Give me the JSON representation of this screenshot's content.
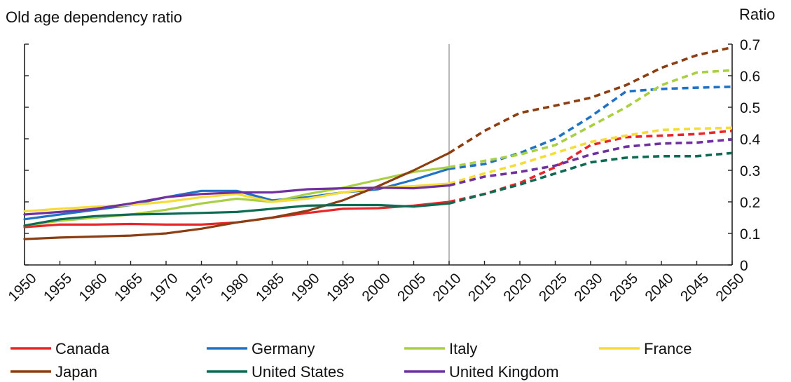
{
  "chart_data": {
    "type": "line",
    "title": "Old age dependency ratio",
    "ylabel": "Ratio",
    "ylim": [
      0,
      0.7
    ],
    "yticks": [
      "0",
      "0.1",
      "0.2",
      "0.3",
      "0.4",
      "0.5",
      "0.6",
      "0.7"
    ],
    "x": [
      1950,
      1955,
      1960,
      1965,
      1970,
      1975,
      1980,
      1985,
      1990,
      1995,
      2000,
      2005,
      2010,
      2015,
      2020,
      2025,
      2030,
      2035,
      2040,
      2045,
      2050
    ],
    "xticks": [
      "1950",
      "1955",
      "1960",
      "1965",
      "1970",
      "1975",
      "1980",
      "1985",
      "1990",
      "1995",
      "2000",
      "2005",
      "2010",
      "2015",
      "2020",
      "2025",
      "2030",
      "2035",
      "2040",
      "2045",
      "2050"
    ],
    "projection_start": 2010,
    "grid": false,
    "legend_position": "bottom",
    "series": [
      {
        "name": "Canada",
        "color": "#e8262a",
        "values": [
          0.12,
          0.128,
          0.128,
          0.13,
          0.128,
          0.128,
          0.135,
          0.15,
          0.165,
          0.178,
          0.18,
          0.188,
          0.2,
          0.225,
          0.26,
          0.31,
          0.38,
          0.405,
          0.41,
          0.415,
          0.425
        ]
      },
      {
        "name": "Germany",
        "color": "#1f72c4",
        "values": [
          0.145,
          0.16,
          0.175,
          0.19,
          0.215,
          0.235,
          0.235,
          0.205,
          0.215,
          0.23,
          0.24,
          0.27,
          0.305,
          0.32,
          0.355,
          0.4,
          0.47,
          0.55,
          0.558,
          0.562,
          0.565
        ]
      },
      {
        "name": "Italy",
        "color": "#a9cf45",
        "values": [
          0.125,
          0.14,
          0.15,
          0.16,
          0.175,
          0.195,
          0.21,
          0.2,
          0.225,
          0.245,
          0.27,
          0.295,
          0.31,
          0.33,
          0.35,
          0.38,
          0.44,
          0.5,
          0.57,
          0.61,
          0.617
        ]
      },
      {
        "name": "France",
        "color": "#f5dc39",
        "values": [
          0.17,
          0.178,
          0.185,
          0.19,
          0.2,
          0.215,
          0.225,
          0.2,
          0.21,
          0.23,
          0.245,
          0.25,
          0.258,
          0.29,
          0.32,
          0.355,
          0.39,
          0.41,
          0.428,
          0.432,
          0.435
        ]
      },
      {
        "name": "Japan",
        "color": "#8b3e12",
        "values": [
          0.082,
          0.087,
          0.09,
          0.093,
          0.1,
          0.115,
          0.135,
          0.15,
          0.172,
          0.205,
          0.25,
          0.3,
          0.355,
          0.425,
          0.482,
          0.505,
          0.53,
          0.57,
          0.625,
          0.665,
          0.69
        ]
      },
      {
        "name": "United States",
        "color": "#0d6b54",
        "values": [
          0.125,
          0.145,
          0.155,
          0.16,
          0.162,
          0.165,
          0.168,
          0.178,
          0.188,
          0.19,
          0.19,
          0.185,
          0.195,
          0.225,
          0.255,
          0.29,
          0.325,
          0.34,
          0.345,
          0.345,
          0.355
        ]
      },
      {
        "name": "United Kingdom",
        "color": "#7030a0",
        "values": [
          0.16,
          0.168,
          0.178,
          0.195,
          0.215,
          0.225,
          0.23,
          0.23,
          0.24,
          0.243,
          0.245,
          0.243,
          0.252,
          0.28,
          0.295,
          0.315,
          0.35,
          0.375,
          0.385,
          0.388,
          0.398
        ]
      }
    ]
  }
}
